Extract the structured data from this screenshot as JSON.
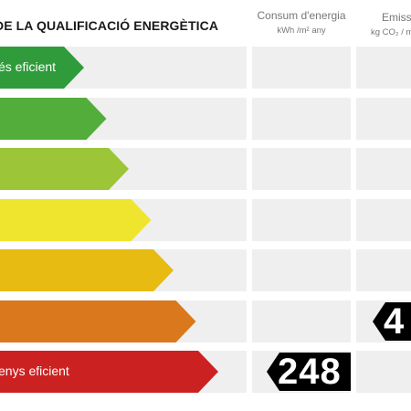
{
  "header": {
    "title": "DE LA QUALIFICACIÓ ENERGÈTICA",
    "energy_column": {
      "title": "Consum d'energia",
      "unit": "kWh /m² any"
    },
    "co2_column": {
      "title": "Emissi",
      "unit": "kg CO₂ / m"
    }
  },
  "bands": [
    {
      "label": "és eficient",
      "color": "#2f9b3a"
    },
    {
      "label": "",
      "color": "#52ad3b"
    },
    {
      "label": "",
      "color": "#9cc537"
    },
    {
      "label": "",
      "color": "#efe52f"
    },
    {
      "label": "",
      "color": "#e7bb12"
    },
    {
      "label": "",
      "color": "#d9781c"
    },
    {
      "label": "enys eficient",
      "color": "#cb2221"
    }
  ],
  "indicators": {
    "energy_value": "248",
    "co2_value": "4"
  }
}
